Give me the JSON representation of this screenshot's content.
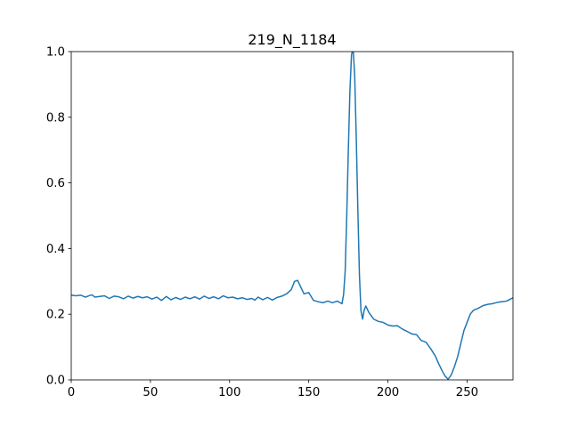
{
  "chart_data": {
    "type": "line",
    "title": "219_N_1184",
    "xlabel": "",
    "ylabel": "",
    "xlim": [
      0,
      279
    ],
    "ylim": [
      0.0,
      1.0
    ],
    "xticks": [
      0,
      50,
      100,
      150,
      200,
      250
    ],
    "xtick_labels": [
      "0",
      "50",
      "100",
      "150",
      "200",
      "250"
    ],
    "yticks": [
      0.0,
      0.2,
      0.4,
      0.6,
      0.8,
      1.0
    ],
    "ytick_labels": [
      "0.0",
      "0.2",
      "0.4",
      "0.6",
      "0.8",
      "1.0"
    ],
    "grid": false,
    "line_color": "#1f77b4",
    "series": [
      {
        "points": [
          [
            0,
            0.258
          ],
          [
            3,
            0.256
          ],
          [
            6,
            0.258
          ],
          [
            9,
            0.252
          ],
          [
            11,
            0.256
          ],
          [
            13,
            0.259
          ],
          [
            15,
            0.252
          ],
          [
            18,
            0.254
          ],
          [
            21,
            0.256
          ],
          [
            24,
            0.248
          ],
          [
            27,
            0.255
          ],
          [
            30,
            0.253
          ],
          [
            33,
            0.247
          ],
          [
            36,
            0.255
          ],
          [
            39,
            0.249
          ],
          [
            42,
            0.254
          ],
          [
            45,
            0.25
          ],
          [
            48,
            0.253
          ],
          [
            51,
            0.246
          ],
          [
            54,
            0.252
          ],
          [
            57,
            0.242
          ],
          [
            60,
            0.254
          ],
          [
            63,
            0.244
          ],
          [
            66,
            0.251
          ],
          [
            69,
            0.245
          ],
          [
            72,
            0.252
          ],
          [
            75,
            0.247
          ],
          [
            78,
            0.253
          ],
          [
            81,
            0.246
          ],
          [
            84,
            0.255
          ],
          [
            87,
            0.248
          ],
          [
            90,
            0.253
          ],
          [
            93,
            0.247
          ],
          [
            96,
            0.256
          ],
          [
            99,
            0.25
          ],
          [
            102,
            0.252
          ],
          [
            105,
            0.247
          ],
          [
            108,
            0.25
          ],
          [
            111,
            0.245
          ],
          [
            114,
            0.248
          ],
          [
            116,
            0.243
          ],
          [
            118,
            0.252
          ],
          [
            121,
            0.244
          ],
          [
            124,
            0.251
          ],
          [
            127,
            0.243
          ],
          [
            130,
            0.251
          ],
          [
            133,
            0.255
          ],
          [
            136,
            0.262
          ],
          [
            139,
            0.275
          ],
          [
            141,
            0.3
          ],
          [
            143,
            0.303
          ],
          [
            145,
            0.282
          ],
          [
            147,
            0.262
          ],
          [
            150,
            0.266
          ],
          [
            153,
            0.242
          ],
          [
            156,
            0.238
          ],
          [
            159,
            0.235
          ],
          [
            162,
            0.24
          ],
          [
            165,
            0.235
          ],
          [
            168,
            0.24
          ],
          [
            171,
            0.232
          ],
          [
            172,
            0.26
          ],
          [
            173,
            0.33
          ],
          [
            174,
            0.5
          ],
          [
            175,
            0.7
          ],
          [
            176,
            0.88
          ],
          [
            177,
            0.99
          ],
          [
            178,
            1.01
          ],
          [
            179,
            0.93
          ],
          [
            180,
            0.74
          ],
          [
            181,
            0.52
          ],
          [
            182,
            0.32
          ],
          [
            183,
            0.21
          ],
          [
            184,
            0.185
          ],
          [
            185,
            0.212
          ],
          [
            186,
            0.225
          ],
          [
            188,
            0.205
          ],
          [
            191,
            0.185
          ],
          [
            194,
            0.178
          ],
          [
            197,
            0.175
          ],
          [
            200,
            0.167
          ],
          [
            203,
            0.164
          ],
          [
            206,
            0.165
          ],
          [
            209,
            0.155
          ],
          [
            212,
            0.148
          ],
          [
            215,
            0.14
          ],
          [
            218,
            0.138
          ],
          [
            221,
            0.12
          ],
          [
            224,
            0.115
          ],
          [
            227,
            0.095
          ],
          [
            230,
            0.072
          ],
          [
            232,
            0.05
          ],
          [
            234,
            0.03
          ],
          [
            236,
            0.012
          ],
          [
            238,
            0.002
          ],
          [
            240,
            0.015
          ],
          [
            242,
            0.04
          ],
          [
            244,
            0.07
          ],
          [
            246,
            0.11
          ],
          [
            248,
            0.15
          ],
          [
            250,
            0.175
          ],
          [
            252,
            0.2
          ],
          [
            254,
            0.212
          ],
          [
            257,
            0.218
          ],
          [
            260,
            0.226
          ],
          [
            263,
            0.23
          ],
          [
            266,
            0.232
          ],
          [
            269,
            0.236
          ],
          [
            272,
            0.238
          ],
          [
            275,
            0.24
          ],
          [
            277,
            0.245
          ],
          [
            279,
            0.25
          ]
        ]
      }
    ]
  }
}
